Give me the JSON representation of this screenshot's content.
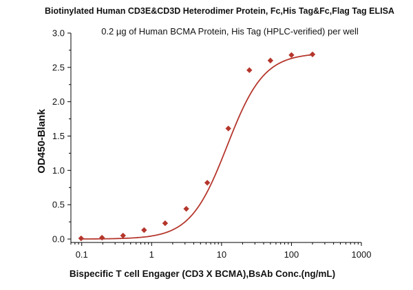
{
  "chart_data": {
    "type": "scatter",
    "title": "Biotinylated Human CD3E&CD3D Heterodimer Protein, Fc,His Tag&Fc,Flag Tag ELISA",
    "subtitle": "0.2 µg of Human BCMA Protein, His Tag (HPLC-verified)  per well",
    "xlabel": "Bispecific T cell Engager (CD3 X BCMA),BsAb Conc.(ng/mL)",
    "ylabel": "OD450-Blank",
    "x_scale": "log",
    "xlim": [
      0.07,
      1000
    ],
    "ylim": [
      -0.05,
      3.0
    ],
    "x_ticks": [
      0.1,
      1,
      10,
      100,
      1000
    ],
    "x_tick_labels": [
      "0.1",
      "1",
      "10",
      "100",
      "1000"
    ],
    "y_ticks": [
      0.0,
      0.5,
      1.0,
      1.5,
      2.0,
      2.5,
      3.0
    ],
    "y_tick_labels": [
      "0.0",
      "0.5",
      "1.0",
      "1.5",
      "2.0",
      "2.5",
      "3.0"
    ],
    "grid": false,
    "legend": "none",
    "color": "#b5362c",
    "series": [
      {
        "x": [
          0.098,
          0.195,
          0.39,
          0.78,
          1.56,
          3.13,
          6.25,
          12.5,
          25,
          50,
          100,
          200
        ],
        "y": [
          0.01,
          0.02,
          0.05,
          0.13,
          0.23,
          0.44,
          0.82,
          1.61,
          2.46,
          2.6,
          2.68,
          2.69
        ]
      }
    ],
    "fit": {
      "bottom": 0.0,
      "top": 2.71,
      "ec50": 12.0,
      "hill": 1.65
    }
  }
}
